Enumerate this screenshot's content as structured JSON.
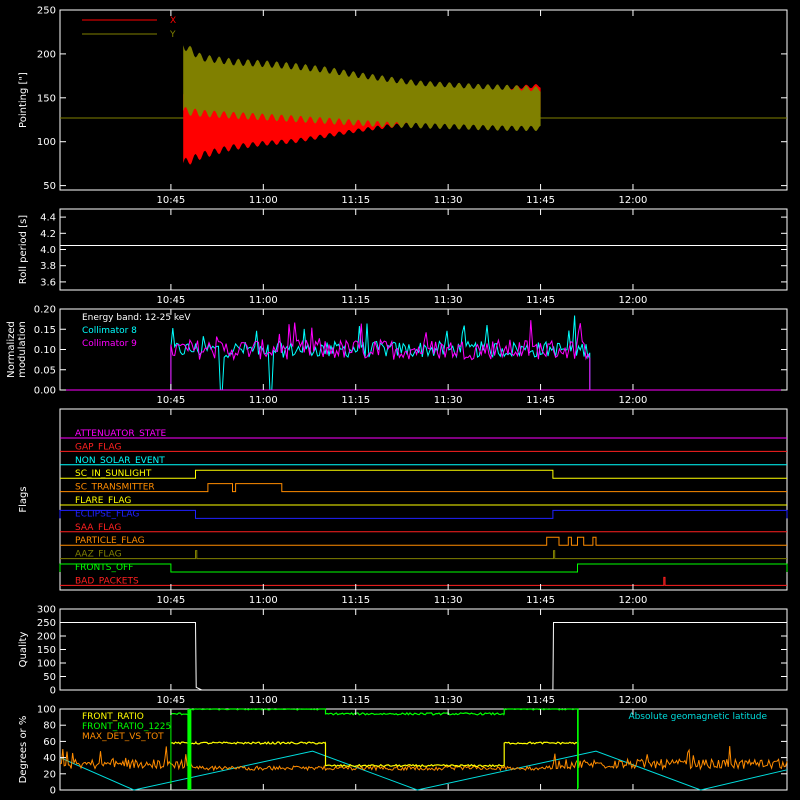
{
  "colors": {
    "background": "#000000",
    "axes": "#ffffff",
    "x_pointing": "#ff0000",
    "y_pointing": "#808000",
    "collimator_8": "#00ffff",
    "collimator_9": "#ff00ff",
    "front_ratio": "#ffff00",
    "front_ratio_1225": "#00ff00",
    "max_det_vs_tot": "#ff8c00",
    "geomag_latitude": "#00dddd"
  },
  "time_axis": {
    "range": [
      "10:27",
      "12:25"
    ],
    "ticks": [
      "10:45",
      "11:00",
      "11:15",
      "11:30",
      "11:45",
      "12:00"
    ]
  },
  "chart_data": [
    {
      "type": "line",
      "ylabel": "Pointing [\"]",
      "ylim": [
        45,
        250
      ],
      "yticks": [
        "50",
        "100",
        "150",
        "200",
        "250"
      ],
      "legend_position": "top-left",
      "series": [
        {
          "name": "X",
          "color": "#ff0000",
          "x": [
            "10:47",
            "10:50",
            "10:55",
            "11:00",
            "11:05",
            "11:10",
            "11:15",
            "11:20",
            "11:25",
            "11:30",
            "11:35",
            "11:40",
            "11:45"
          ],
          "upper": [
            160,
            155,
            150,
            145,
            143,
            146,
            150,
            155,
            158,
            160,
            162,
            164,
            166
          ],
          "lower": [
            70,
            80,
            90,
            95,
            98,
            104,
            110,
            115,
            118,
            120,
            122,
            125,
            128
          ]
        },
        {
          "name": "Y",
          "color": "#808000",
          "x": [
            "10:47",
            "10:50",
            "10:55",
            "11:00",
            "11:05",
            "11:10",
            "11:15",
            "11:20",
            "11:25",
            "11:30",
            "11:35",
            "11:40",
            "11:45"
          ],
          "upper": [
            215,
            200,
            195,
            193,
            190,
            186,
            180,
            175,
            170,
            168,
            166,
            165,
            163
          ],
          "lower": [
            130,
            128,
            126,
            124,
            122,
            120,
            118,
            116,
            115,
            114,
            113,
            112,
            112
          ]
        }
      ],
      "reference_line": 127
    },
    {
      "type": "line",
      "ylabel": "Roll period [s]",
      "ylim": [
        3.5,
        4.5
      ],
      "yticks": [
        "3.6",
        "3.8",
        "4.0",
        "4.2",
        "4.4"
      ],
      "series": [
        {
          "value": 4.05,
          "color": "#ffffff"
        }
      ]
    },
    {
      "type": "line",
      "ylabel": "Normalized modulation",
      "ylim": [
        0.0,
        0.2
      ],
      "yticks": [
        "0.00",
        "0.05",
        "0.10",
        "0.15",
        "0.20"
      ],
      "legend_title": "Energy band: 12-25 keV",
      "series": [
        {
          "name": "Collimator 8",
          "color": "#00ffff",
          "start": "10:45",
          "end": "11:53",
          "level": 0.1,
          "dropouts": [
            [
              "10:53",
              "10:53.5"
            ],
            [
              "11:01",
              "11:01.5"
            ]
          ]
        },
        {
          "name": "Collimator 9",
          "color": "#ff00ff",
          "start": "10:45",
          "end": "11:53",
          "level": 0.1
        }
      ]
    },
    {
      "type": "line",
      "ylabel": "Flags",
      "flags": [
        {
          "name": "ATTENUATOR_STATE",
          "color": "#ff00ff",
          "on": []
        },
        {
          "name": "GAP_FLAG",
          "color": "#ff2020",
          "on": []
        },
        {
          "name": "NON_SOLAR_EVENT",
          "color": "#00ffff",
          "on": []
        },
        {
          "name": "SC_IN_SUNLIGHT",
          "color": "#ffff00",
          "on": [
            [
              "10:49",
              "11:47"
            ]
          ]
        },
        {
          "name": "SC_TRANSMITTER",
          "color": "#ff8c00",
          "on": [
            [
              "10:51",
              "10:55"
            ],
            [
              "10:55.5",
              "11:03"
            ]
          ]
        },
        {
          "name": "FLARE_FLAG",
          "color": "#ffff00",
          "on": []
        },
        {
          "name": "ECLIPSE_FLAG",
          "color": "#2020ff",
          "on": [
            [
              "10:27",
              "10:49"
            ],
            [
              "11:47",
              "12:25"
            ]
          ]
        },
        {
          "name": "SAA_FLAG",
          "color": "#ff2020",
          "on": []
        },
        {
          "name": "PARTICLE_FLAG",
          "color": "#ff8c00",
          "on": [
            [
              "11:46",
              "11:48"
            ],
            [
              "11:49.5",
              "11:50"
            ],
            [
              "11:51",
              "11:52"
            ],
            [
              "11:53.5",
              "11:54"
            ]
          ]
        },
        {
          "name": "AAZ_FLAG",
          "color": "#808000",
          "on": [
            [
              "10:49",
              "10:49.2"
            ],
            [
              "11:47.1",
              "11:47.3"
            ]
          ]
        },
        {
          "name": "FRONTS_OFF",
          "color": "#00ff00",
          "on": [
            [
              "10:27",
              "10:45"
            ],
            [
              "11:51",
              "12:25"
            ]
          ]
        },
        {
          "name": "BAD_PACKETS",
          "color": "#ff2020",
          "on": [
            [
              "12:05",
              "12:05.2"
            ]
          ]
        }
      ]
    },
    {
      "type": "line",
      "ylabel": "Quality",
      "ylim": [
        0,
        300
      ],
      "yticks": [
        "0",
        "50",
        "100",
        "150",
        "200",
        "250",
        "300"
      ],
      "series": [
        {
          "color": "#ffffff",
          "x": [
            "10:27",
            "10:49",
            "10:49.1",
            "10:50",
            "11:47",
            "11:47.1",
            "12:25"
          ],
          "y": [
            250,
            250,
            10,
            0,
            0,
            250,
            250
          ]
        }
      ]
    },
    {
      "type": "line",
      "ylabel": "Degrees or %",
      "ylim": [
        0,
        100
      ],
      "yticks": [
        "0",
        "20",
        "40",
        "60",
        "80",
        "100"
      ],
      "legend_left": [
        "FRONT_RATIO",
        "FRONT_RATIO_1225",
        "MAX_DET_VS_TOT"
      ],
      "legend_right": "Absolute geomagnetic latitude",
      "series": [
        {
          "name": "FRONT_RATIO",
          "color": "#ffff00",
          "x": [
            "10:45",
            "10:49",
            "10:49.1",
            "11:10",
            "11:10.1",
            "11:39",
            "11:39.1",
            "11:51",
            "11:51.1"
          ],
          "y": [
            58,
            58,
            58,
            58,
            30,
            30,
            58,
            58,
            30
          ]
        },
        {
          "name": "FRONT_RATIO_1225",
          "color": "#00ff00",
          "x": [
            "10:45",
            "10:48",
            "10:48.1",
            "11:10",
            "11:10.1",
            "11:39",
            "11:39.1",
            "11:51",
            "11:51.1"
          ],
          "y": [
            94,
            94,
            100,
            100,
            94,
            94,
            100,
            100,
            2
          ]
        },
        {
          "name": "MAX_DET_VS_TOT",
          "color": "#ff8c00",
          "level": 32
        },
        {
          "name": "Absolute geomagnetic latitude",
          "color": "#00dddd",
          "x": [
            "10:27",
            "10:39",
            "11:08",
            "11:25",
            "11:54",
            "12:11",
            "12:25"
          ],
          "y": [
            40,
            0,
            48,
            0,
            48,
            0,
            25
          ]
        }
      ]
    }
  ]
}
